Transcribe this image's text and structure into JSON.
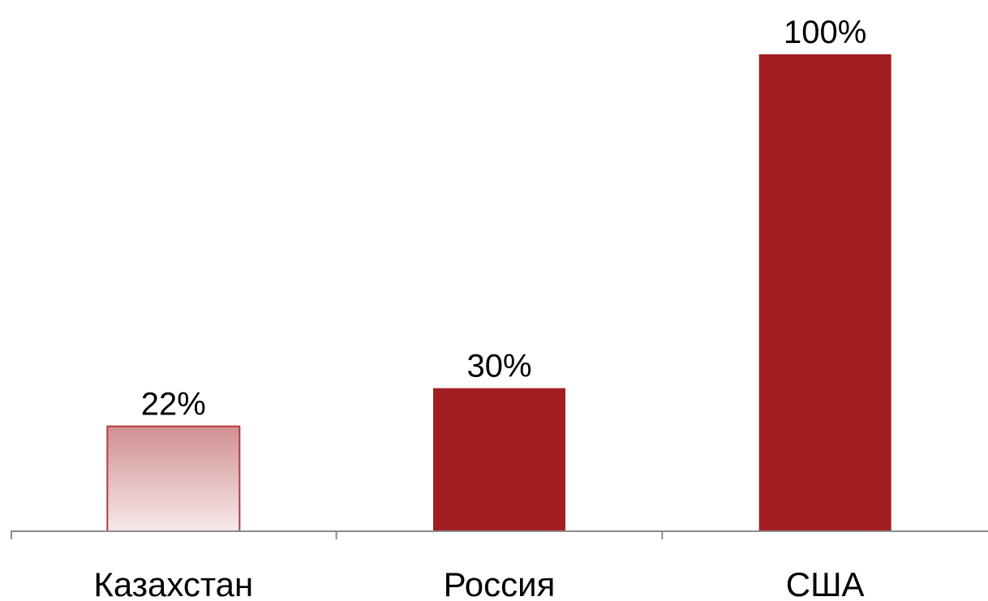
{
  "chart_data": {
    "type": "bar",
    "categories": [
      "Казахстан",
      "Россия",
      "США"
    ],
    "values": [
      22,
      30,
      100
    ],
    "value_labels": [
      "22%",
      "30%",
      "100%"
    ],
    "title": "",
    "xlabel": "",
    "ylabel": "",
    "ylim": [
      0,
      100
    ],
    "grid": false,
    "legend": "none",
    "bar_styles": [
      "gradient",
      "solid",
      "solid"
    ]
  },
  "colors": {
    "bar_solid": "#a01d21",
    "bar_gradient_top": "#d18f91",
    "bar_gradient_bottom": "#f7e9ea",
    "bar_outline": "#b8383c",
    "axis": "#8c8c8c"
  }
}
